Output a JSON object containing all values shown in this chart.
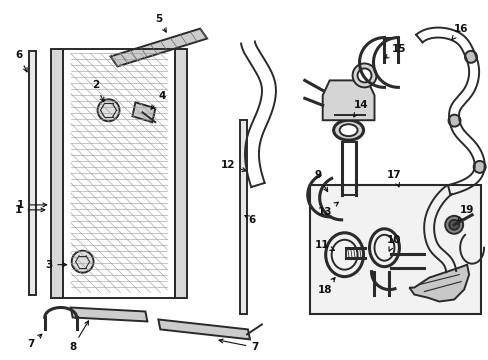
{
  "background_color": "#ffffff",
  "fig_width": 4.89,
  "fig_height": 3.6,
  "dpi": 100,
  "line_color": "#2a2a2a",
  "label_fontsize": 7.5
}
